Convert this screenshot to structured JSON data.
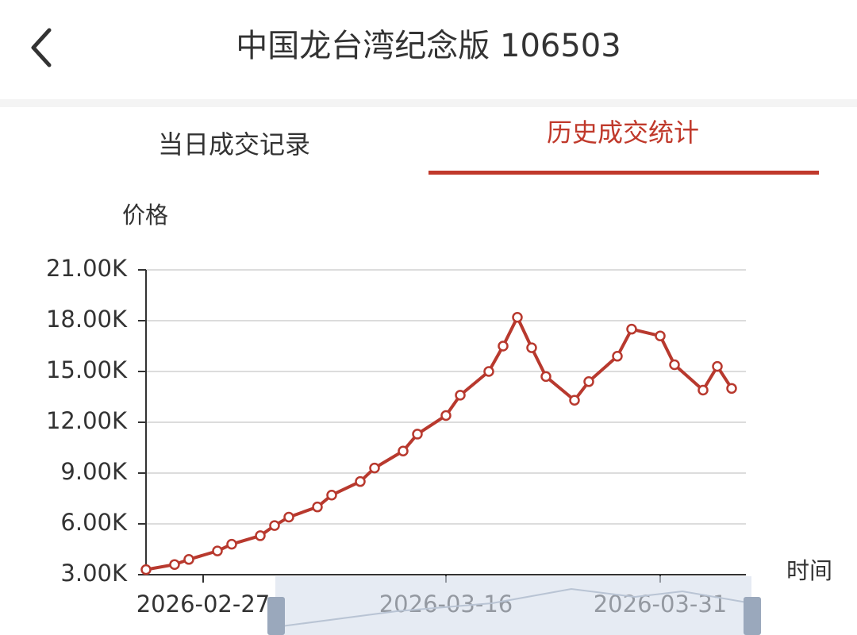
{
  "header": {
    "title": "中国龙台湾纪念版 106503"
  },
  "tabs": [
    "当日成交记录",
    "历史成交统计"
  ],
  "chart_data": {
    "type": "line",
    "y_label": "价格",
    "x_label": "时间",
    "color": "#b8392e",
    "grid": true,
    "x": [
      "2026-02-23",
      "2026-02-25",
      "2026-02-26",
      "2026-02-28",
      "2026-03-01",
      "2026-03-03",
      "2026-03-04",
      "2026-03-05",
      "2026-03-07",
      "2026-03-08",
      "2026-03-10",
      "2026-03-11",
      "2026-03-13",
      "2026-03-14",
      "2026-03-16",
      "2026-03-17",
      "2026-03-19",
      "2026-03-20",
      "2026-03-21",
      "2026-03-22",
      "2026-03-23",
      "2026-03-25",
      "2026-03-26",
      "2026-03-28",
      "2026-03-29",
      "2026-03-31",
      "2026-04-01",
      "2026-04-03",
      "2026-04-04",
      "2026-04-05"
    ],
    "values": [
      3300,
      3600,
      3900,
      4400,
      4800,
      5300,
      5900,
      6400,
      7000,
      7700,
      8500,
      9300,
      10300,
      11300,
      12400,
      13600,
      15000,
      16500,
      18200,
      16400,
      14700,
      13300,
      14400,
      15900,
      17500,
      17100,
      15400,
      13900,
      15300,
      14000
    ],
    "xlim": [
      "2026-02-23",
      "2026-04-06"
    ],
    "xticks": [
      "2026-02-27",
      "2026-03-16",
      "2026-03-31"
    ],
    "ylim": [
      3000,
      21000
    ],
    "yticks": [
      {
        "value": 3000,
        "label": "3.00K"
      },
      {
        "value": 6000,
        "label": "6.00K"
      },
      {
        "value": 9000,
        "label": "9.00K"
      },
      {
        "value": 12000,
        "label": "12.00K"
      },
      {
        "value": 15000,
        "label": "15.00K"
      },
      {
        "value": 18000,
        "label": "18.00K"
      },
      {
        "value": 21000,
        "label": "21.00K"
      }
    ]
  }
}
